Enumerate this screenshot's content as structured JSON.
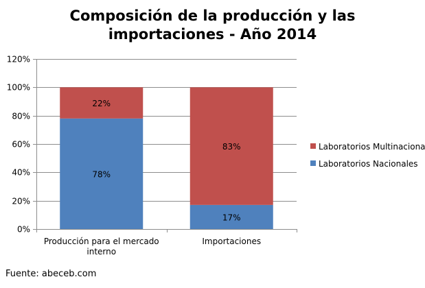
{
  "chart_data": {
    "type": "bar",
    "stacked": true,
    "title_lines": [
      "Composición de la producción y las",
      "importaciones - Año 2014"
    ],
    "categories": [
      [
        "Producción para el mercado",
        "interno"
      ],
      [
        "Importaciones"
      ]
    ],
    "series": [
      {
        "name": "Laboratorios Nacionales",
        "values": [
          78,
          17
        ],
        "labels": [
          "78%",
          "17%"
        ],
        "color": "#4f81bd"
      },
      {
        "name": "Laboratorios Multinacional",
        "values": [
          22,
          83
        ],
        "labels": [
          "22%",
          "83%"
        ],
        "color": "#c0504d"
      }
    ],
    "ylim": [
      0,
      120
    ],
    "yticks": [
      "0%",
      "20%",
      "40%",
      "60%",
      "80%",
      "100%",
      "120%"
    ],
    "grid": true,
    "legend": "right"
  },
  "source": "Fuente: abeceb.com"
}
